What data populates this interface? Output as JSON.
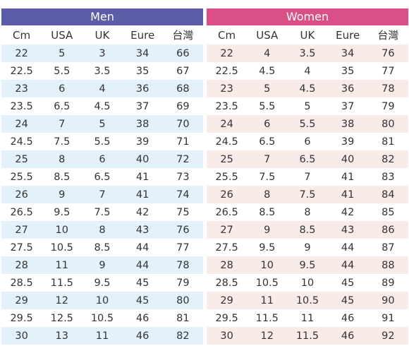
{
  "colors": {
    "men_header": "#5b5ea6",
    "men_stripe": "#e3f1fb",
    "women_header": "#d94f86",
    "women_stripe": "#f9ebe8",
    "plain_row": "#ffffff",
    "text": "#333333"
  },
  "men": {
    "title": "Men",
    "columns": [
      "Cm",
      "USA",
      "UK",
      "Eure",
      "台灣"
    ],
    "rows": [
      [
        "22",
        "5",
        "3",
        "34",
        "66"
      ],
      [
        "22.5",
        "5.5",
        "3.5",
        "35",
        "67"
      ],
      [
        "23",
        "6",
        "4",
        "36",
        "68"
      ],
      [
        "23.5",
        "6.5",
        "4.5",
        "37",
        "69"
      ],
      [
        "24",
        "7",
        "5",
        "38",
        "70"
      ],
      [
        "24.5",
        "7.5",
        "5.5",
        "39",
        "71"
      ],
      [
        "25",
        "8",
        "6",
        "40",
        "72"
      ],
      [
        "25.5",
        "8.5",
        "6.5",
        "41",
        "73"
      ],
      [
        "26",
        "9",
        "7",
        "41",
        "74"
      ],
      [
        "26.5",
        "9.5",
        "7.5",
        "42",
        "75"
      ],
      [
        "27",
        "10",
        "8",
        "43",
        "76"
      ],
      [
        "27.5",
        "10.5",
        "8.5",
        "44",
        "77"
      ],
      [
        "28",
        "11",
        "9",
        "44",
        "78"
      ],
      [
        "28.5",
        "11.5",
        "9.5",
        "45",
        "79"
      ],
      [
        "29",
        "12",
        "10",
        "45",
        "80"
      ],
      [
        "29.5",
        "12.5",
        "10.5",
        "46",
        "81"
      ],
      [
        "30",
        "13",
        "11",
        "46",
        "82"
      ]
    ]
  },
  "women": {
    "title": "Women",
    "columns": [
      "Cm",
      "USA",
      "UK",
      "Eure",
      "台灣"
    ],
    "rows": [
      [
        "22",
        "4",
        "3.5",
        "34",
        "76"
      ],
      [
        "22.5",
        "4.5",
        "4",
        "35",
        "77"
      ],
      [
        "23",
        "5",
        "4.5",
        "36",
        "78"
      ],
      [
        "23.5",
        "5.5",
        "5",
        "37",
        "79"
      ],
      [
        "24",
        "6",
        "5.5",
        "38",
        "80"
      ],
      [
        "24.5",
        "6.5",
        "6",
        "39",
        "81"
      ],
      [
        "25",
        "7",
        "6.5",
        "40",
        "82"
      ],
      [
        "25.5",
        "7.5",
        "7",
        "41",
        "83"
      ],
      [
        "26",
        "8",
        "7.5",
        "41",
        "84"
      ],
      [
        "26.5",
        "8.5",
        "8",
        "42",
        "85"
      ],
      [
        "27",
        "9",
        "8.5",
        "43",
        "86"
      ],
      [
        "27.5",
        "9.5",
        "9",
        "44",
        "87"
      ],
      [
        "28",
        "10",
        "9.5",
        "44",
        "88"
      ],
      [
        "28.5",
        "10.5",
        "10",
        "45",
        "89"
      ],
      [
        "29",
        "11",
        "10.5",
        "45",
        "90"
      ],
      [
        "29.5",
        "11.5",
        "11",
        "46",
        "91"
      ],
      [
        "30",
        "12",
        "11.5",
        "46",
        "92"
      ]
    ]
  }
}
